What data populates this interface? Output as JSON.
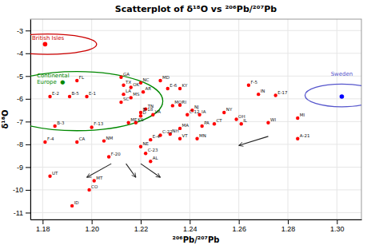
{
  "chart_data": {
    "type": "scatter",
    "title": "Scatterplot of δ¹⁸O vs ²⁰⁶Pb/²⁰⁷Pb",
    "x_label": "²⁰⁶Pb/²⁰⁷Pb",
    "y_label": "δ¹⁸O",
    "xlim": [
      1.175,
      1.31
    ],
    "ylim": [
      -11.3,
      -2.5
    ],
    "xticks": [
      1.18,
      {
        "value": 1.2,
        "label": "1.20"
      },
      1.22,
      1.24,
      1.26,
      1.28,
      {
        "value": 1.3,
        "label": "1.30"
      }
    ],
    "yticks": [
      -11,
      -10,
      -9,
      -8,
      -7,
      -6,
      -5,
      -4,
      -3
    ],
    "grid": true,
    "series": [
      {
        "color": "red",
        "x": [
          1.194,
          1.183,
          1.191,
          1.198,
          1.185,
          1.181,
          1.194,
          1.2,
          1.183,
          1.192,
          1.199,
          1.201,
          1.205,
          1.207,
          1.212,
          1.213,
          1.216,
          1.22,
          1.212,
          1.213,
          1.216,
          1.221,
          1.215,
          1.218,
          1.22,
          1.222,
          1.224,
          1.228,
          1.231,
          1.236,
          1.22,
          1.222,
          1.225,
          1.22,
          1.233,
          1.236,
          1.241,
          1.239,
          1.244,
          1.224,
          1.228,
          1.232,
          1.236,
          1.236,
          1.243,
          1.245,
          1.25,
          1.254,
          1.259,
          1.261,
          1.264,
          1.268,
          1.275,
          1.272,
          1.284,
          1.284
        ],
        "values": [
          -5.2,
          -5.9,
          -5.9,
          -5.9,
          -7.2,
          -7.9,
          -7.9,
          -7.25,
          -9.4,
          -10.7,
          -10.0,
          -9.6,
          -7.85,
          -8.55,
          -5.05,
          -5.4,
          -5.5,
          -5.3,
          -6.15,
          -5.8,
          -5.95,
          -5.7,
          -7.05,
          -7.05,
          -8.1,
          -8.4,
          -8.75,
          -5.2,
          -5.55,
          -5.55,
          -6.6,
          -6.45,
          -6.7,
          -6.75,
          -6.3,
          -6.28,
          -6.5,
          -6.7,
          -6.7,
          -7.8,
          -7.6,
          -7.55,
          -7.3,
          -7.75,
          -7.75,
          -7.2,
          -7.1,
          -6.6,
          -6.9,
          -7.1,
          -5.4,
          -5.8,
          -5.85,
          -7.05,
          -6.85,
          -7.75
        ],
        "labels": [
          "FL",
          "E-2",
          "B-5",
          "E-1",
          "B-3",
          "F-4",
          "CA",
          "F-13",
          "UT",
          "ID",
          "CO",
          "MT",
          "NM",
          "F-20",
          "GA",
          "TX",
          "OK",
          "NC",
          "SC",
          "LA",
          "MS",
          "AR",
          "ME",
          "KS",
          "NE",
          "C-23",
          "AL",
          "MD",
          "E-6",
          "KY",
          "B-18",
          "TN",
          "VA",
          "D",
          "MO",
          "RI",
          "NJ",
          "C-12",
          "IA",
          "E-4",
          "C-22",
          "NH",
          "MA",
          "VT",
          "MN",
          "PA",
          "CT",
          "NY",
          "OH",
          "IL",
          "F-5",
          "IN",
          "E-17",
          "WI",
          "MI",
          "A-21"
        ]
      },
      {
        "color": "red",
        "x": [
          1.181
        ],
        "values": [
          -3.6
        ]
      },
      {
        "color": "blue",
        "x": [
          1.302
        ],
        "values": [
          -5.9
        ]
      }
    ],
    "arrows": [
      {
        "x1": 1.208,
        "y1": -8.85,
        "x2": 1.198,
        "y2": -9.45
      },
      {
        "x1": 1.214,
        "y1": -8.85,
        "x2": 1.218,
        "y2": -9.45
      },
      {
        "x1": 1.22,
        "y1": -8.85,
        "x2": 1.228,
        "y2": -9.45
      },
      {
        "x1": 1.272,
        "y1": -7.65,
        "x2": 1.26,
        "y2": -8.05
      }
    ],
    "ellipses": [
      {
        "cx": 1.182,
        "cy": -3.6,
        "width": 0.04,
        "height": 0.9,
        "color": "#cc0000",
        "label": "British Isles",
        "label_x": 1.175,
        "label_y": -3.15,
        "label_color": "#cc0000"
      },
      {
        "cx": 1.194,
        "cy": -6.1,
        "width": 0.07,
        "height": 2.6,
        "color": "#008800",
        "label": "Continental\nEurope  ●",
        "label_x": 1.177,
        "label_y": -4.8,
        "label_color": "#008800"
      },
      {
        "cx": 1.302,
        "cy": -5.85,
        "width": 0.03,
        "height": 1.0,
        "color": "#5555cc",
        "label": "Sweden",
        "label_x": 1.302,
        "label_y": -5.1,
        "label_color": "#5555cc"
      }
    ]
  }
}
